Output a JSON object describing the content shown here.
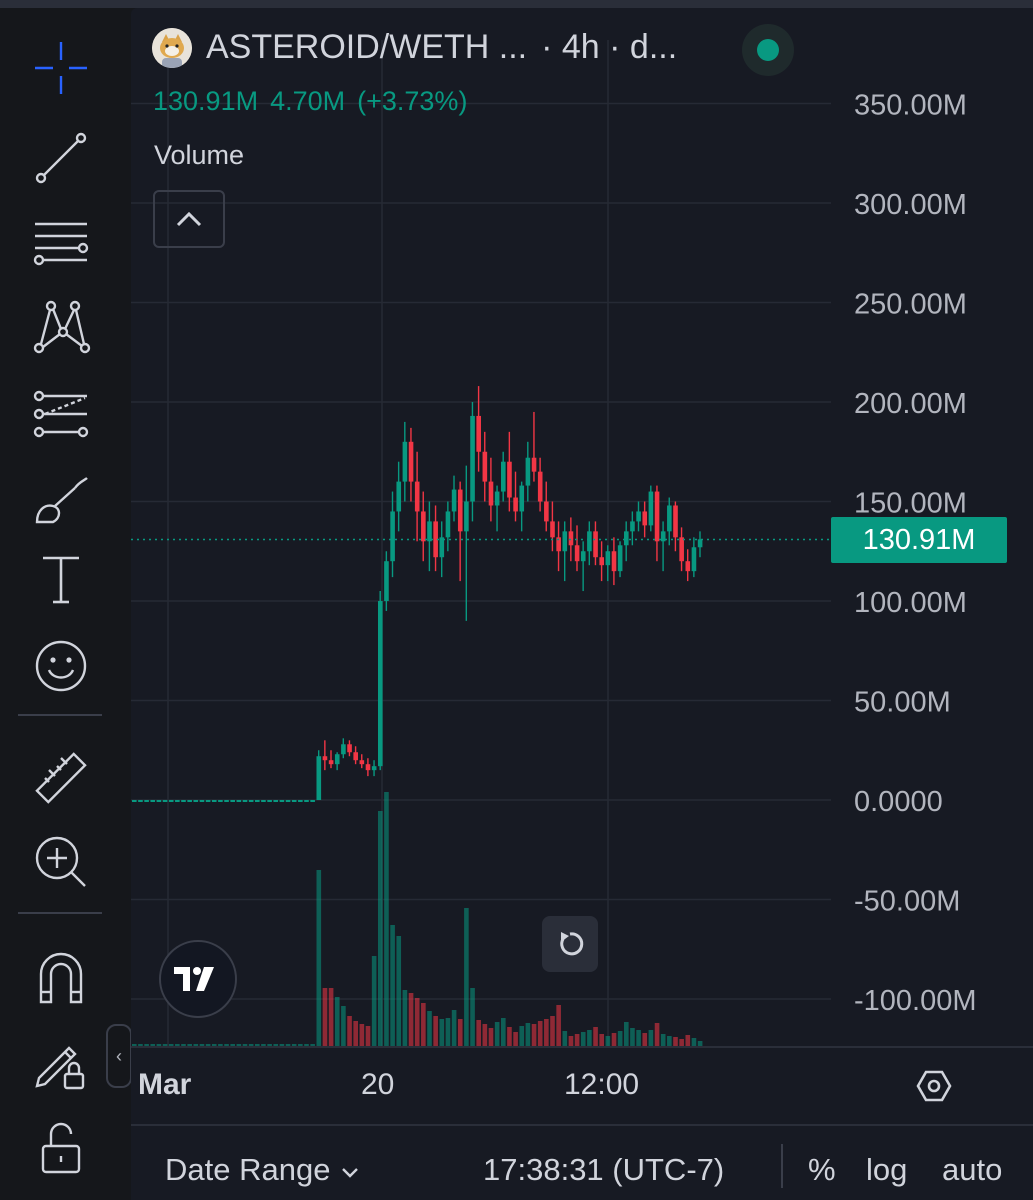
{
  "header": {
    "pair": "ASTEROID/WETH ...",
    "interval": "· 4h · d...",
    "status_color": "#089981"
  },
  "legend": {
    "last": "130.91M",
    "change": "4.70M",
    "change_pct": "(+3.73%)"
  },
  "volume_label": "Volume",
  "price_tag": "130.91M",
  "x_axis": {
    "labels": [
      "Mar",
      "20",
      "12:00"
    ]
  },
  "bottom_bar": {
    "date_range": "Date Range",
    "clock": "17:38:31 (UTC-7)",
    "percent": "%",
    "log": "log",
    "auto": "auto"
  },
  "toolbar_icons": [
    "crosshair-icon",
    "trend-line-icon",
    "fib-lines-icon",
    "pattern-icon",
    "prediction-icon",
    "brush-icon",
    "text-icon",
    "emoji-icon",
    "ruler-icon",
    "zoom-in-icon",
    "magnet-icon",
    "lock-drawing-icon",
    "unlock-icon"
  ],
  "colors": {
    "up": "#089981",
    "down": "#f23645",
    "background": "#171a23"
  },
  "chart_data": {
    "type": "candlestick",
    "interval": "4h",
    "y_ticks": [
      "350.00M",
      "300.00M",
      "250.00M",
      "200.00M",
      "150.00M",
      "100.00M",
      "50.00M",
      "0.0000",
      "-50.00M",
      "-100.00M"
    ],
    "ylim": [
      -125,
      355
    ],
    "last_price": 130.91,
    "candles_ohlc_millions": [
      [
        0,
        0,
        0,
        0
      ],
      [
        0,
        0,
        0,
        0
      ],
      [
        0,
        0,
        0,
        0
      ],
      [
        0,
        0,
        0,
        0
      ],
      [
        0,
        0,
        0,
        0
      ],
      [
        0,
        0,
        0,
        0
      ],
      [
        0,
        0,
        0,
        0
      ],
      [
        0,
        0,
        0,
        0
      ],
      [
        0,
        0,
        0,
        0
      ],
      [
        0,
        0,
        0,
        0
      ],
      [
        0,
        0,
        0,
        0
      ],
      [
        0,
        0,
        0,
        0
      ],
      [
        0,
        0,
        0,
        0
      ],
      [
        0,
        0,
        0,
        0
      ],
      [
        0,
        0,
        0,
        0
      ],
      [
        0,
        0,
        0,
        0
      ],
      [
        0,
        0,
        0,
        0
      ],
      [
        0,
        0,
        0,
        0
      ],
      [
        0,
        0,
        0,
        0
      ],
      [
        0,
        0,
        0,
        0
      ],
      [
        0,
        0,
        0,
        0
      ],
      [
        0,
        0,
        0,
        0
      ],
      [
        0,
        0,
        0,
        0
      ],
      [
        0,
        0,
        0,
        0
      ],
      [
        0,
        0,
        0,
        0
      ],
      [
        0,
        0,
        0,
        0
      ],
      [
        0,
        0,
        0,
        0
      ],
      [
        0,
        0,
        0,
        0
      ],
      [
        0,
        0,
        0,
        0
      ],
      [
        0,
        0,
        0,
        0
      ],
      [
        0,
        25,
        0,
        22
      ],
      [
        22,
        30,
        15,
        20
      ],
      [
        20,
        25,
        16,
        18
      ],
      [
        18,
        24,
        15,
        23
      ],
      [
        23,
        31,
        21,
        28
      ],
      [
        28,
        30,
        22,
        24
      ],
      [
        24,
        27,
        18,
        20
      ],
      [
        20,
        23,
        16,
        18
      ],
      [
        18,
        21,
        12,
        15
      ],
      [
        15,
        20,
        12,
        17
      ],
      [
        17,
        105,
        15,
        100
      ],
      [
        100,
        125,
        95,
        120
      ],
      [
        120,
        155,
        112,
        145
      ],
      [
        145,
        170,
        135,
        160
      ],
      [
        160,
        190,
        150,
        180
      ],
      [
        180,
        187,
        150,
        160
      ],
      [
        160,
        175,
        130,
        145
      ],
      [
        145,
        155,
        120,
        130
      ],
      [
        130,
        150,
        115,
        140
      ],
      [
        140,
        148,
        115,
        122
      ],
      [
        122,
        140,
        112,
        132
      ],
      [
        132,
        150,
        125,
        145
      ],
      [
        145,
        163,
        140,
        156
      ],
      [
        156,
        160,
        110,
        135
      ],
      [
        135,
        168,
        90,
        150
      ],
      [
        150,
        200,
        140,
        193
      ],
      [
        193,
        208,
        165,
        175
      ],
      [
        175,
        185,
        150,
        160
      ],
      [
        160,
        172,
        140,
        148
      ],
      [
        148,
        158,
        135,
        155
      ],
      [
        155,
        175,
        150,
        170
      ],
      [
        170,
        185,
        145,
        152
      ],
      [
        152,
        165,
        140,
        145
      ],
      [
        145,
        160,
        135,
        158
      ],
      [
        158,
        180,
        150,
        172
      ],
      [
        172,
        195,
        160,
        165
      ],
      [
        165,
        172,
        145,
        150
      ],
      [
        150,
        160,
        135,
        140
      ],
      [
        140,
        150,
        125,
        132
      ],
      [
        132,
        140,
        115,
        125
      ],
      [
        125,
        140,
        110,
        135
      ],
      [
        135,
        142,
        120,
        128
      ],
      [
        128,
        138,
        115,
        120
      ],
      [
        120,
        130,
        105,
        125
      ],
      [
        125,
        140,
        118,
        135
      ],
      [
        135,
        140,
        118,
        122
      ],
      [
        122,
        130,
        110,
        118
      ],
      [
        118,
        128,
        110,
        125
      ],
      [
        125,
        132,
        108,
        115
      ],
      [
        115,
        130,
        112,
        128
      ],
      [
        128,
        140,
        120,
        135
      ],
      [
        135,
        145,
        128,
        140
      ],
      [
        140,
        150,
        135,
        145
      ],
      [
        145,
        150,
        132,
        138
      ],
      [
        138,
        158,
        135,
        155
      ],
      [
        155,
        158,
        120,
        130
      ],
      [
        130,
        140,
        115,
        135
      ],
      [
        135,
        152,
        128,
        148
      ],
      [
        148,
        150,
        125,
        132
      ],
      [
        132,
        137,
        115,
        120
      ],
      [
        120,
        126,
        110,
        115
      ],
      [
        115,
        132,
        112,
        127
      ],
      [
        127,
        135,
        122,
        131
      ]
    ],
    "volume_relative": [
      0.2,
      0.2,
      0.2,
      0.2,
      0.2,
      0.2,
      0.2,
      0.2,
      0.2,
      0.2,
      0.2,
      0.2,
      0.2,
      0.2,
      0.2,
      0.2,
      0.2,
      0.2,
      0.2,
      0.2,
      0.2,
      0.2,
      0.2,
      0.2,
      0.2,
      0.2,
      0.2,
      0.2,
      0.2,
      0.2,
      17.6,
      5.8,
      5.8,
      4.9,
      4.0,
      3.0,
      2.5,
      2.2,
      2.0,
      9.0,
      23.5,
      25.4,
      12.1,
      11.0,
      5.6,
      5.3,
      4.8,
      4.3,
      3.5,
      3.0,
      2.7,
      2.8,
      3.6,
      2.7,
      13.8,
      5.8,
      2.6,
      2.2,
      1.8,
      2.4,
      2.8,
      1.9,
      1.4,
      2.0,
      2.3,
      2.2,
      2.5,
      2.7,
      3.0,
      4.1,
      1.5,
      1.0,
      1.2,
      1.4,
      1.6,
      1.9,
      1.2,
      1.0,
      1.3,
      1.5,
      2.4,
      1.8,
      1.6,
      1.3,
      1.6,
      2.3,
      1.2,
      1.0,
      0.9,
      0.7,
      1.1,
      0.8,
      0.5
    ]
  }
}
